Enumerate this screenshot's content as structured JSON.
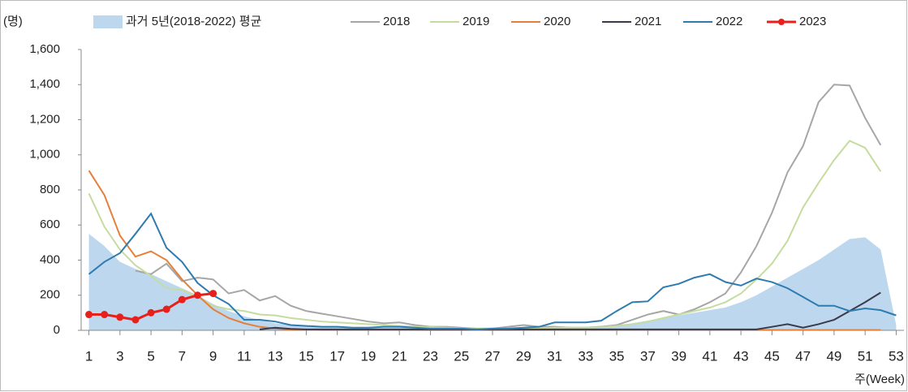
{
  "chart_data": {
    "type": "line",
    "y_label": "(명)",
    "x_label": "주(Week)",
    "x": [
      1,
      2,
      3,
      4,
      5,
      6,
      7,
      8,
      9,
      10,
      11,
      12,
      13,
      14,
      15,
      16,
      17,
      18,
      19,
      20,
      21,
      22,
      23,
      24,
      25,
      26,
      27,
      28,
      29,
      30,
      31,
      32,
      33,
      34,
      35,
      36,
      37,
      38,
      39,
      40,
      41,
      42,
      43,
      44,
      45,
      46,
      47,
      48,
      49,
      50,
      51,
      52,
      53
    ],
    "xlim": [
      0.5,
      53.5
    ],
    "xticks": [
      1,
      3,
      5,
      7,
      9,
      11,
      13,
      15,
      17,
      19,
      21,
      23,
      25,
      27,
      29,
      31,
      33,
      35,
      37,
      39,
      41,
      43,
      45,
      47,
      49,
      51,
      53
    ],
    "ylim": [
      0,
      1600
    ],
    "yticks": [
      0,
      {
        "value": 200,
        "label": "200"
      },
      400,
      600,
      800,
      {
        "value": 1000,
        "label": "1,000"
      },
      {
        "value": 1200,
        "label": "1,200"
      },
      {
        "value": 1400,
        "label": "1,400"
      },
      {
        "value": 1600,
        "label": "1,600"
      }
    ],
    "grid": false,
    "legend": "top",
    "series": [
      {
        "name": "과거 5년(2018-2022) 평균",
        "type": "area",
        "color": "#bdd7ee",
        "values": [
          550,
          480,
          390,
          350,
          320,
          280,
          240,
          200,
          150,
          110,
          80,
          60,
          40,
          30,
          25,
          20,
          18,
          15,
          15,
          15,
          15,
          12,
          10,
          10,
          10,
          8,
          8,
          10,
          12,
          15,
          20,
          20,
          20,
          25,
          30,
          40,
          55,
          70,
          85,
          100,
          115,
          130,
          160,
          200,
          250,
          300,
          350,
          400,
          460,
          520,
          530,
          460,
          30
        ]
      },
      {
        "name": "2018",
        "type": "line",
        "color": "#a6a6a6",
        "values": [
          null,
          null,
          null,
          340,
          320,
          380,
          280,
          300,
          290,
          210,
          230,
          170,
          195,
          140,
          110,
          95,
          80,
          65,
          50,
          40,
          45,
          30,
          20,
          20,
          15,
          10,
          10,
          20,
          30,
          20,
          20,
          15,
          15,
          20,
          30,
          60,
          90,
          110,
          90,
          120,
          160,
          210,
          330,
          480,
          670,
          900,
          1050,
          1300,
          1400,
          1395,
          1210,
          1055,
          null
        ]
      },
      {
        "name": "2019",
        "type": "line",
        "color": "#c5dc9f",
        "values": [
          780,
          590,
          460,
          370,
          310,
          240,
          230,
          190,
          140,
          120,
          110,
          90,
          85,
          70,
          60,
          50,
          45,
          40,
          35,
          30,
          25,
          20,
          18,
          15,
          12,
          10,
          10,
          10,
          10,
          12,
          15,
          15,
          15,
          18,
          25,
          35,
          50,
          70,
          90,
          110,
          130,
          160,
          210,
          290,
          380,
          510,
          700,
          840,
          970,
          1080,
          1040,
          905,
          null
        ]
      },
      {
        "name": "2020",
        "type": "line",
        "color": "#e5803a",
        "values": [
          910,
          770,
          540,
          420,
          450,
          400,
          290,
          200,
          120,
          70,
          40,
          20,
          10,
          5,
          3,
          2,
          2,
          2,
          2,
          2,
          2,
          2,
          2,
          2,
          2,
          2,
          2,
          2,
          2,
          2,
          2,
          2,
          2,
          2,
          2,
          2,
          2,
          2,
          2,
          2,
          2,
          2,
          2,
          2,
          2,
          2,
          2,
          2,
          2,
          2,
          2,
          2,
          null
        ]
      },
      {
        "name": "2021",
        "type": "line",
        "color": "#3a3a4a",
        "values": [
          null,
          null,
          null,
          null,
          null,
          null,
          null,
          null,
          null,
          null,
          null,
          5,
          15,
          8,
          5,
          5,
          5,
          5,
          5,
          5,
          5,
          5,
          5,
          5,
          5,
          5,
          5,
          5,
          5,
          5,
          5,
          5,
          5,
          5,
          5,
          5,
          5,
          5,
          5,
          5,
          5,
          5,
          5,
          5,
          20,
          35,
          15,
          35,
          60,
          110,
          160,
          215,
          null
        ]
      },
      {
        "name": "2022",
        "type": "line",
        "color": "#2e7bb0",
        "values": [
          320,
          390,
          440,
          550,
          665,
          470,
          390,
          270,
          200,
          150,
          60,
          60,
          50,
          30,
          25,
          20,
          20,
          15,
          15,
          20,
          20,
          15,
          10,
          10,
          10,
          5,
          10,
          10,
          15,
          20,
          45,
          45,
          45,
          55,
          110,
          160,
          165,
          245,
          265,
          300,
          320,
          275,
          255,
          295,
          275,
          240,
          190,
          140,
          140,
          110,
          125,
          115,
          85
        ]
      },
      {
        "name": "2023",
        "type": "line",
        "color": "#e8201c",
        "markers": true,
        "values": [
          90,
          90,
          75,
          60,
          100,
          120,
          175,
          200,
          210,
          null,
          null,
          null,
          null,
          null,
          null,
          null,
          null,
          null,
          null,
          null,
          null,
          null,
          null,
          null,
          null,
          null,
          null,
          null,
          null,
          null,
          null,
          null,
          null,
          null,
          null,
          null,
          null,
          null,
          null,
          null,
          null,
          null,
          null,
          null,
          null,
          null,
          null,
          null,
          null,
          null,
          null,
          null,
          null
        ]
      }
    ]
  }
}
